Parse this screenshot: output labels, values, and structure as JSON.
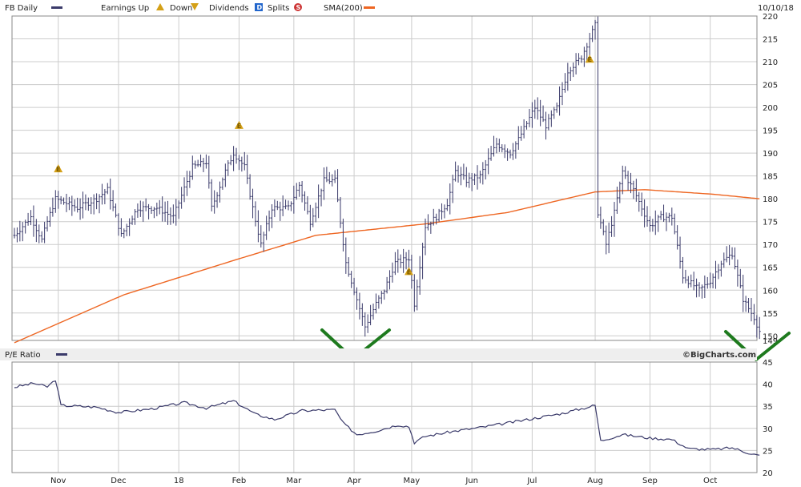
{
  "header": {
    "symbol": "FB Daily",
    "earnings_up": "Earnings Up",
    "earnings_down": "Down",
    "dividends": "Dividends",
    "dividends_symbol": "D",
    "splits": "Splits",
    "splits_symbol": "S",
    "sma": "SMA(200)",
    "date": "10/10/18",
    "earnings_symbol": "E"
  },
  "lower_panel": {
    "title": "P/E Ratio",
    "brand": "©BigCharts.com"
  },
  "colors": {
    "price": "#3a3a6a",
    "sma": "#ee6622",
    "pe": "#3a3a6a",
    "grid": "#cccccc",
    "checkmark": "#1e7a1e",
    "earnings": "#d4a017"
  },
  "chart_data": [
    {
      "type": "bar",
      "title": "FB Daily",
      "x_months": [
        "Nov",
        "Dec",
        "18",
        "Feb",
        "Mar",
        "Apr",
        "May",
        "Jun",
        "Jul",
        "Aug",
        "Sep",
        "Oct"
      ],
      "ylim": [
        149,
        220
      ],
      "yticks": [
        149,
        150,
        155,
        160,
        165,
        170,
        175,
        180,
        185,
        190,
        195,
        200,
        205,
        210,
        215,
        220
      ],
      "price_keyframes": [
        {
          "day": 0,
          "price": 172
        },
        {
          "day": 6,
          "price": 176
        },
        {
          "day": 10,
          "price": 171
        },
        {
          "day": 12,
          "price": 175
        },
        {
          "day": 15,
          "price": 180
        },
        {
          "day": 23,
          "price": 178
        },
        {
          "day": 30,
          "price": 180
        },
        {
          "day": 34,
          "price": 182
        },
        {
          "day": 39,
          "price": 172
        },
        {
          "day": 45,
          "price": 178
        },
        {
          "day": 52,
          "price": 178
        },
        {
          "day": 58,
          "price": 176
        },
        {
          "day": 65,
          "price": 187
        },
        {
          "day": 70,
          "price": 188
        },
        {
          "day": 72,
          "price": 178
        },
        {
          "day": 77,
          "price": 186
        },
        {
          "day": 80,
          "price": 190
        },
        {
          "day": 84,
          "price": 187
        },
        {
          "day": 87,
          "price": 178
        },
        {
          "day": 90,
          "price": 170
        },
        {
          "day": 94,
          "price": 178
        },
        {
          "day": 100,
          "price": 178
        },
        {
          "day": 104,
          "price": 183
        },
        {
          "day": 108,
          "price": 175
        },
        {
          "day": 113,
          "price": 184
        },
        {
          "day": 117,
          "price": 184
        },
        {
          "day": 121,
          "price": 166
        },
        {
          "day": 124,
          "price": 160
        },
        {
          "day": 128,
          "price": 152
        },
        {
          "day": 132,
          "price": 157
        },
        {
          "day": 135,
          "price": 160
        },
        {
          "day": 139,
          "price": 166
        },
        {
          "day": 144,
          "price": 167
        },
        {
          "day": 146,
          "price": 157
        },
        {
          "day": 150,
          "price": 174
        },
        {
          "day": 154,
          "price": 176
        },
        {
          "day": 158,
          "price": 179
        },
        {
          "day": 161,
          "price": 186
        },
        {
          "day": 165,
          "price": 184
        },
        {
          "day": 170,
          "price": 185
        },
        {
          "day": 176,
          "price": 192
        },
        {
          "day": 181,
          "price": 190
        },
        {
          "day": 184,
          "price": 193
        },
        {
          "day": 190,
          "price": 200
        },
        {
          "day": 194,
          "price": 196
        },
        {
          "day": 198,
          "price": 200
        },
        {
          "day": 202,
          "price": 208
        },
        {
          "day": 207,
          "price": 211
        },
        {
          "day": 212,
          "price": 218
        },
        {
          "day": 213,
          "price": 177
        },
        {
          "day": 216,
          "price": 170
        },
        {
          "day": 219,
          "price": 177
        },
        {
          "day": 222,
          "price": 186
        },
        {
          "day": 226,
          "price": 182
        },
        {
          "day": 232,
          "price": 174
        },
        {
          "day": 236,
          "price": 176
        },
        {
          "day": 240,
          "price": 176
        },
        {
          "day": 244,
          "price": 163
        },
        {
          "day": 250,
          "price": 160
        },
        {
          "day": 254,
          "price": 162
        },
        {
          "day": 258,
          "price": 166
        },
        {
          "day": 262,
          "price": 168
        },
        {
          "day": 266,
          "price": 158
        },
        {
          "day": 270,
          "price": 154
        },
        {
          "day": 272,
          "price": 151
        }
      ],
      "sma200_keyframes": [
        {
          "day": 0,
          "value": 148.5
        },
        {
          "day": 40,
          "value": 159
        },
        {
          "day": 80,
          "value": 166.5
        },
        {
          "day": 110,
          "value": 172
        },
        {
          "day": 150,
          "value": 174.5
        },
        {
          "day": 180,
          "value": 177
        },
        {
          "day": 212,
          "value": 181.5
        },
        {
          "day": 230,
          "value": 182
        },
        {
          "day": 255,
          "value": 181
        },
        {
          "day": 272,
          "value": 180
        }
      ],
      "earnings_events": [
        {
          "day": 16,
          "price": 186.5
        },
        {
          "day": 82,
          "price": 196
        },
        {
          "day": 144,
          "price": 164
        },
        {
          "day": 210,
          "price": 210.5
        }
      ]
    },
    {
      "type": "line",
      "title": "P/E Ratio",
      "ylim": [
        20,
        45
      ],
      "yticks": [
        20,
        25,
        30,
        35,
        40,
        45
      ],
      "pe_keyframes": [
        {
          "day": 0,
          "value": 39.3
        },
        {
          "day": 7,
          "value": 40.2
        },
        {
          "day": 12,
          "value": 39.4
        },
        {
          "day": 15,
          "value": 41
        },
        {
          "day": 17,
          "value": 35.2
        },
        {
          "day": 30,
          "value": 34.8
        },
        {
          "day": 38,
          "value": 33.6
        },
        {
          "day": 50,
          "value": 34.4
        },
        {
          "day": 62,
          "value": 35.8
        },
        {
          "day": 70,
          "value": 34.6
        },
        {
          "day": 80,
          "value": 36.2
        },
        {
          "day": 88,
          "value": 33.2
        },
        {
          "day": 95,
          "value": 32
        },
        {
          "day": 105,
          "value": 34
        },
        {
          "day": 117,
          "value": 34.2
        },
        {
          "day": 120,
          "value": 31.2
        },
        {
          "day": 125,
          "value": 28.6
        },
        {
          "day": 132,
          "value": 29.4
        },
        {
          "day": 140,
          "value": 30.8
        },
        {
          "day": 144,
          "value": 30.4
        },
        {
          "day": 146,
          "value": 26.8
        },
        {
          "day": 150,
          "value": 28.2
        },
        {
          "day": 160,
          "value": 29.3
        },
        {
          "day": 170,
          "value": 30.2
        },
        {
          "day": 180,
          "value": 31.2
        },
        {
          "day": 190,
          "value": 32.3
        },
        {
          "day": 200,
          "value": 33.4
        },
        {
          "day": 212,
          "value": 35.2
        },
        {
          "day": 214,
          "value": 27.2
        },
        {
          "day": 222,
          "value": 28.6
        },
        {
          "day": 232,
          "value": 27.8
        },
        {
          "day": 240,
          "value": 27.5
        },
        {
          "day": 246,
          "value": 25.4
        },
        {
          "day": 255,
          "value": 25.2
        },
        {
          "day": 262,
          "value": 25.6
        },
        {
          "day": 266,
          "value": 24.8
        },
        {
          "day": 272,
          "value": 23.8
        }
      ]
    }
  ]
}
